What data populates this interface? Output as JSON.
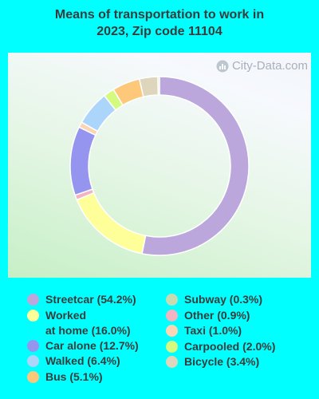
{
  "title": "Means of transportation to work in\n2023, Zip code 11104",
  "watermark": "City-Data.com",
  "chart_data": {
    "type": "pie",
    "subtype": "donut",
    "start_angle_deg": 0,
    "direction": "clockwise",
    "slices": [
      {
        "label": "Streetcar",
        "value": 54.2,
        "color": "#bba7db"
      },
      {
        "label": "Worked at home",
        "value": 16.0,
        "color": "#ffff99"
      },
      {
        "label": "Other",
        "value": 0.9,
        "color": "#f2b3c3"
      },
      {
        "label": "Car alone",
        "value": 12.7,
        "color": "#9595ef"
      },
      {
        "label": "Taxi",
        "value": 1.0,
        "color": "#fcd5b4"
      },
      {
        "label": "Walked",
        "value": 6.4,
        "color": "#abd5fb"
      },
      {
        "label": "Carpooled",
        "value": 2.0,
        "color": "#d4fa7f"
      },
      {
        "label": "Bus",
        "value": 5.1,
        "color": "#fdc879"
      },
      {
        "label": "Bicycle",
        "value": 3.4,
        "color": "#ddd6bd"
      },
      {
        "label": "Subway",
        "value": 0.3,
        "color": "#c6dbb2"
      }
    ]
  },
  "legend": {
    "left": [
      {
        "text": "Streetcar (54.2%)",
        "color": "#bba7db"
      },
      {
        "text": "Worked\nat home (16.0%)",
        "color": "#ffff99"
      },
      {
        "text": "Car alone (12.7%)",
        "color": "#9595ef"
      },
      {
        "text": "Walked (6.4%)",
        "color": "#abd5fb"
      },
      {
        "text": "Bus (5.1%)",
        "color": "#fdc879"
      }
    ],
    "right": [
      {
        "text": "Subway (0.3%)",
        "color": "#c6dbb2"
      },
      {
        "text": "Other (0.9%)",
        "color": "#f2b3c3"
      },
      {
        "text": "Taxi (1.0%)",
        "color": "#fcd5b4"
      },
      {
        "text": "Carpooled (2.0%)",
        "color": "#d4fa7f"
      },
      {
        "text": "Bicycle (3.4%)",
        "color": "#ddd6bd"
      }
    ]
  }
}
